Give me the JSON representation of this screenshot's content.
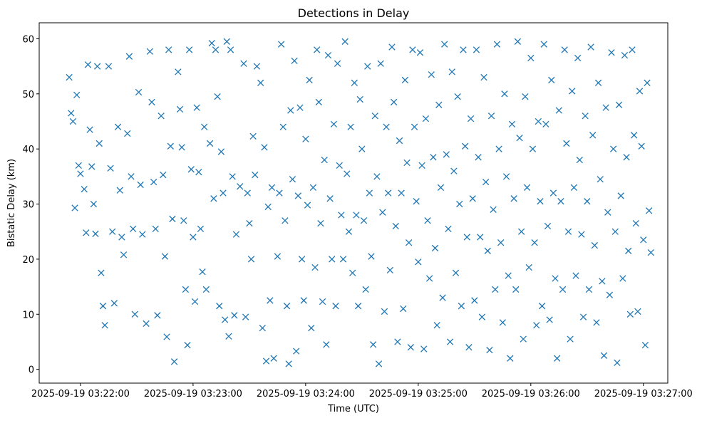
{
  "chart_data": {
    "type": "scatter",
    "title": "Detections in Delay",
    "xlabel": "Time (UTC)",
    "ylabel": "Bistatic Delay (km)",
    "marker": "x",
    "color": "#1f77b4",
    "grid": false,
    "xlim": [
      "2025-09-19 03:21:38",
      "2025-09-19 03:27:13"
    ],
    "ylim": [
      -2.5,
      62.9
    ],
    "x_ticks": [
      "2025-09-19 03:22:00",
      "2025-09-19 03:23:00",
      "2025-09-19 03:24:00",
      "2025-09-19 03:25:00",
      "2025-09-19 03:26:00",
      "2025-09-19 03:27:00"
    ],
    "y_ticks": [
      "0",
      "10",
      "20",
      "30",
      "40",
      "50",
      "60"
    ],
    "points": [
      [
        "2025-09-19 03:21:54",
        53.0
      ],
      [
        "2025-09-19 03:21:55",
        46.5
      ],
      [
        "2025-09-19 03:21:56",
        45.0
      ],
      [
        "2025-09-19 03:21:57",
        29.3
      ],
      [
        "2025-09-19 03:21:58",
        49.8
      ],
      [
        "2025-09-19 03:21:59",
        37.0
      ],
      [
        "2025-09-19 03:22:00",
        35.5
      ],
      [
        "2025-09-19 03:22:02",
        32.7
      ],
      [
        "2025-09-19 03:22:03",
        24.8
      ],
      [
        "2025-09-19 03:22:04",
        55.3
      ],
      [
        "2025-09-19 03:22:05",
        43.5
      ],
      [
        "2025-09-19 03:22:06",
        36.8
      ],
      [
        "2025-09-19 03:22:07",
        30.0
      ],
      [
        "2025-09-19 03:22:08",
        24.6
      ],
      [
        "2025-09-19 03:22:09",
        55.0
      ],
      [
        "2025-09-19 03:22:10",
        41.0
      ],
      [
        "2025-09-19 03:22:11",
        17.5
      ],
      [
        "2025-09-19 03:22:12",
        11.5
      ],
      [
        "2025-09-19 03:22:13",
        8.0
      ],
      [
        "2025-09-19 03:22:15",
        55.0
      ],
      [
        "2025-09-19 03:22:16",
        36.5
      ],
      [
        "2025-09-19 03:22:17",
        25.0
      ],
      [
        "2025-09-19 03:22:18",
        12.0
      ],
      [
        "2025-09-19 03:22:20",
        44.0
      ],
      [
        "2025-09-19 03:22:21",
        32.5
      ],
      [
        "2025-09-19 03:22:22",
        24.0
      ],
      [
        "2025-09-19 03:22:23",
        20.8
      ],
      [
        "2025-09-19 03:22:25",
        42.8
      ],
      [
        "2025-09-19 03:22:26",
        56.8
      ],
      [
        "2025-09-19 03:22:27",
        35.0
      ],
      [
        "2025-09-19 03:22:28",
        25.5
      ],
      [
        "2025-09-19 03:22:29",
        10.0
      ],
      [
        "2025-09-19 03:22:31",
        50.3
      ],
      [
        "2025-09-19 03:22:32",
        33.5
      ],
      [
        "2025-09-19 03:22:33",
        24.5
      ],
      [
        "2025-09-19 03:22:35",
        8.3
      ],
      [
        "2025-09-19 03:22:37",
        57.7
      ],
      [
        "2025-09-19 03:22:38",
        48.5
      ],
      [
        "2025-09-19 03:22:39",
        34.0
      ],
      [
        "2025-09-19 03:22:40",
        25.5
      ],
      [
        "2025-09-19 03:22:41",
        9.8
      ],
      [
        "2025-09-19 03:22:43",
        46.0
      ],
      [
        "2025-09-19 03:22:44",
        35.3
      ],
      [
        "2025-09-19 03:22:45",
        20.5
      ],
      [
        "2025-09-19 03:22:46",
        5.9
      ],
      [
        "2025-09-19 03:22:47",
        58.0
      ],
      [
        "2025-09-19 03:22:48",
        40.5
      ],
      [
        "2025-09-19 03:22:49",
        27.3
      ],
      [
        "2025-09-19 03:22:50",
        1.4
      ],
      [
        "2025-09-19 03:22:52",
        54.0
      ],
      [
        "2025-09-19 03:22:53",
        47.2
      ],
      [
        "2025-09-19 03:22:54",
        40.3
      ],
      [
        "2025-09-19 03:22:55",
        27.0
      ],
      [
        "2025-09-19 03:22:56",
        14.5
      ],
      [
        "2025-09-19 03:22:57",
        4.4
      ],
      [
        "2025-09-19 03:22:58",
        58.0
      ],
      [
        "2025-09-19 03:22:59",
        36.3
      ],
      [
        "2025-09-19 03:23:00",
        24.0
      ],
      [
        "2025-09-19 03:23:01",
        12.3
      ],
      [
        "2025-09-19 03:23:02",
        47.5
      ],
      [
        "2025-09-19 03:23:03",
        35.8
      ],
      [
        "2025-09-19 03:23:04",
        25.5
      ],
      [
        "2025-09-19 03:23:05",
        17.7
      ],
      [
        "2025-09-19 03:23:06",
        44.0
      ],
      [
        "2025-09-19 03:23:07",
        14.5
      ],
      [
        "2025-09-19 03:23:09",
        41.0
      ],
      [
        "2025-09-19 03:23:10",
        59.2
      ],
      [
        "2025-09-19 03:23:11",
        31.0
      ],
      [
        "2025-09-19 03:23:12",
        58.0
      ],
      [
        "2025-09-19 03:23:13",
        49.5
      ],
      [
        "2025-09-19 03:23:14",
        11.5
      ],
      [
        "2025-09-19 03:23:15",
        39.5
      ],
      [
        "2025-09-19 03:23:16",
        32.0
      ],
      [
        "2025-09-19 03:23:17",
        9.0
      ],
      [
        "2025-09-19 03:23:18",
        59.5
      ],
      [
        "2025-09-19 03:23:19",
        6.0
      ],
      [
        "2025-09-19 03:23:20",
        58.0
      ],
      [
        "2025-09-19 03:23:21",
        35.0
      ],
      [
        "2025-09-19 03:23:22",
        9.8
      ],
      [
        "2025-09-19 03:23:23",
        24.5
      ],
      [
        "2025-09-19 03:23:25",
        33.2
      ],
      [
        "2025-09-19 03:23:27",
        55.5
      ],
      [
        "2025-09-19 03:23:28",
        9.5
      ],
      [
        "2025-09-19 03:23:29",
        32.0
      ],
      [
        "2025-09-19 03:23:30",
        26.5
      ],
      [
        "2025-09-19 03:23:31",
        20.0
      ],
      [
        "2025-09-19 03:23:32",
        42.3
      ],
      [
        "2025-09-19 03:23:33",
        35.3
      ],
      [
        "2025-09-19 03:23:34",
        55.0
      ],
      [
        "2025-09-19 03:23:36",
        52.0
      ],
      [
        "2025-09-19 03:23:37",
        7.5
      ],
      [
        "2025-09-19 03:23:38",
        40.3
      ],
      [
        "2025-09-19 03:23:39",
        1.5
      ],
      [
        "2025-09-19 03:23:40",
        29.5
      ],
      [
        "2025-09-19 03:23:41",
        12.5
      ],
      [
        "2025-09-19 03:23:42",
        33.0
      ],
      [
        "2025-09-19 03:23:43",
        2.0
      ],
      [
        "2025-09-19 03:23:45",
        20.5
      ],
      [
        "2025-09-19 03:23:46",
        32.0
      ],
      [
        "2025-09-19 03:23:47",
        59.0
      ],
      [
        "2025-09-19 03:23:48",
        44.0
      ],
      [
        "2025-09-19 03:23:49",
        27.0
      ],
      [
        "2025-09-19 03:23:50",
        11.5
      ],
      [
        "2025-09-19 03:23:51",
        1.0
      ],
      [
        "2025-09-19 03:23:52",
        47.0
      ],
      [
        "2025-09-19 03:23:53",
        34.5
      ],
      [
        "2025-09-19 03:23:54",
        56.0
      ],
      [
        "2025-09-19 03:23:55",
        3.3
      ],
      [
        "2025-09-19 03:23:56",
        31.5
      ],
      [
        "2025-09-19 03:23:57",
        47.5
      ],
      [
        "2025-09-19 03:23:58",
        20.0
      ],
      [
        "2025-09-19 03:23:59",
        12.5
      ],
      [
        "2025-09-19 03:24:00",
        41.8
      ],
      [
        "2025-09-19 03:24:01",
        29.8
      ],
      [
        "2025-09-19 03:24:02",
        52.5
      ],
      [
        "2025-09-19 03:24:03",
        7.5
      ],
      [
        "2025-09-19 03:24:04",
        33.0
      ],
      [
        "2025-09-19 03:24:05",
        18.5
      ],
      [
        "2025-09-19 03:24:06",
        58.0
      ],
      [
        "2025-09-19 03:24:07",
        48.5
      ],
      [
        "2025-09-19 03:24:08",
        26.5
      ],
      [
        "2025-09-19 03:24:09",
        12.3
      ],
      [
        "2025-09-19 03:24:10",
        38.0
      ],
      [
        "2025-09-19 03:24:11",
        4.5
      ],
      [
        "2025-09-19 03:24:12",
        57.0
      ],
      [
        "2025-09-19 03:24:13",
        31.0
      ],
      [
        "2025-09-19 03:24:14",
        20.0
      ],
      [
        "2025-09-19 03:24:15",
        44.5
      ],
      [
        "2025-09-19 03:24:16",
        11.5
      ],
      [
        "2025-09-19 03:24:17",
        55.5
      ],
      [
        "2025-09-19 03:24:18",
        37.0
      ],
      [
        "2025-09-19 03:24:19",
        28.0
      ],
      [
        "2025-09-19 03:24:20",
        20.0
      ],
      [
        "2025-09-19 03:24:21",
        59.5
      ],
      [
        "2025-09-19 03:24:22",
        35.5
      ],
      [
        "2025-09-19 03:24:23",
        25.0
      ],
      [
        "2025-09-19 03:24:24",
        44.0
      ],
      [
        "2025-09-19 03:24:25",
        17.5
      ],
      [
        "2025-09-19 03:24:26",
        52.0
      ],
      [
        "2025-09-19 03:24:27",
        28.0
      ],
      [
        "2025-09-19 03:24:28",
        11.5
      ],
      [
        "2025-09-19 03:24:29",
        49.0
      ],
      [
        "2025-09-19 03:24:30",
        40.0
      ],
      [
        "2025-09-19 03:24:31",
        27.0
      ],
      [
        "2025-09-19 03:24:32",
        14.5
      ],
      [
        "2025-09-19 03:24:33",
        55.0
      ],
      [
        "2025-09-19 03:24:34",
        32.0
      ],
      [
        "2025-09-19 03:24:35",
        20.5
      ],
      [
        "2025-09-19 03:24:36",
        4.5
      ],
      [
        "2025-09-19 03:24:37",
        46.0
      ],
      [
        "2025-09-19 03:24:38",
        35.0
      ],
      [
        "2025-09-19 03:24:39",
        1.0
      ],
      [
        "2025-09-19 03:24:40",
        55.5
      ],
      [
        "2025-09-19 03:24:41",
        28.5
      ],
      [
        "2025-09-19 03:24:42",
        10.5
      ],
      [
        "2025-09-19 03:24:43",
        44.0
      ],
      [
        "2025-09-19 03:24:44",
        32.0
      ],
      [
        "2025-09-19 03:24:45",
        18.0
      ],
      [
        "2025-09-19 03:24:46",
        58.5
      ],
      [
        "2025-09-19 03:24:47",
        48.5
      ],
      [
        "2025-09-19 03:24:48",
        26.0
      ],
      [
        "2025-09-19 03:24:49",
        5.0
      ],
      [
        "2025-09-19 03:24:50",
        41.5
      ],
      [
        "2025-09-19 03:24:51",
        32.0
      ],
      [
        "2025-09-19 03:24:52",
        11.0
      ],
      [
        "2025-09-19 03:24:53",
        52.5
      ],
      [
        "2025-09-19 03:24:54",
        37.5
      ],
      [
        "2025-09-19 03:24:55",
        23.0
      ],
      [
        "2025-09-19 03:24:56",
        4.0
      ],
      [
        "2025-09-19 03:24:57",
        58.0
      ],
      [
        "2025-09-19 03:24:58",
        44.0
      ],
      [
        "2025-09-19 03:24:59",
        30.5
      ],
      [
        "2025-09-19 03:25:00",
        19.5
      ],
      [
        "2025-09-19 03:25:01",
        57.5
      ],
      [
        "2025-09-19 03:25:02",
        37.0
      ],
      [
        "2025-09-19 03:25:03",
        3.7
      ],
      [
        "2025-09-19 03:25:04",
        45.5
      ],
      [
        "2025-09-19 03:25:05",
        27.0
      ],
      [
        "2025-09-19 03:25:06",
        16.5
      ],
      [
        "2025-09-19 03:25:07",
        53.5
      ],
      [
        "2025-09-19 03:25:08",
        38.5
      ],
      [
        "2025-09-19 03:25:09",
        22.0
      ],
      [
        "2025-09-19 03:25:10",
        8.0
      ],
      [
        "2025-09-19 03:25:11",
        48.0
      ],
      [
        "2025-09-19 03:25:12",
        33.0
      ],
      [
        "2025-09-19 03:25:13",
        13.0
      ],
      [
        "2025-09-19 03:25:14",
        59.0
      ],
      [
        "2025-09-19 03:25:15",
        39.0
      ],
      [
        "2025-09-19 03:25:16",
        25.5
      ],
      [
        "2025-09-19 03:25:17",
        5.0
      ],
      [
        "2025-09-19 03:25:18",
        54.0
      ],
      [
        "2025-09-19 03:25:19",
        36.0
      ],
      [
        "2025-09-19 03:25:20",
        17.5
      ],
      [
        "2025-09-19 03:25:21",
        49.5
      ],
      [
        "2025-09-19 03:25:22",
        30.0
      ],
      [
        "2025-09-19 03:25:23",
        11.5
      ],
      [
        "2025-09-19 03:25:24",
        58.0
      ],
      [
        "2025-09-19 03:25:25",
        40.5
      ],
      [
        "2025-09-19 03:25:26",
        24.0
      ],
      [
        "2025-09-19 03:25:27",
        4.0
      ],
      [
        "2025-09-19 03:25:28",
        45.5
      ],
      [
        "2025-09-19 03:25:29",
        31.0
      ],
      [
        "2025-09-19 03:25:30",
        12.5
      ],
      [
        "2025-09-19 03:25:31",
        58.0
      ],
      [
        "2025-09-19 03:25:32",
        38.5
      ],
      [
        "2025-09-19 03:25:33",
        24.0
      ],
      [
        "2025-09-19 03:25:34",
        9.5
      ],
      [
        "2025-09-19 03:25:35",
        53.0
      ],
      [
        "2025-09-19 03:25:36",
        34.0
      ],
      [
        "2025-09-19 03:25:37",
        21.5
      ],
      [
        "2025-09-19 03:25:38",
        3.5
      ],
      [
        "2025-09-19 03:25:39",
        46.0
      ],
      [
        "2025-09-19 03:25:40",
        29.0
      ],
      [
        "2025-09-19 03:25:41",
        14.5
      ],
      [
        "2025-09-19 03:25:42",
        59.0
      ],
      [
        "2025-09-19 03:25:43",
        40.0
      ],
      [
        "2025-09-19 03:25:44",
        23.0
      ],
      [
        "2025-09-19 03:25:45",
        8.5
      ],
      [
        "2025-09-19 03:25:46",
        50.0
      ],
      [
        "2025-09-19 03:25:47",
        35.0
      ],
      [
        "2025-09-19 03:25:48",
        17.0
      ],
      [
        "2025-09-19 03:25:49",
        2.0
      ],
      [
        "2025-09-19 03:25:50",
        44.5
      ],
      [
        "2025-09-19 03:25:51",
        31.0
      ],
      [
        "2025-09-19 03:25:52",
        14.5
      ],
      [
        "2025-09-19 03:25:53",
        59.5
      ],
      [
        "2025-09-19 03:25:54",
        42.0
      ],
      [
        "2025-09-19 03:25:55",
        25.0
      ],
      [
        "2025-09-19 03:25:56",
        5.5
      ],
      [
        "2025-09-19 03:25:57",
        49.5
      ],
      [
        "2025-09-19 03:25:58",
        33.0
      ],
      [
        "2025-09-19 03:25:59",
        18.5
      ],
      [
        "2025-09-19 03:26:00",
        56.5
      ],
      [
        "2025-09-19 03:26:01",
        40.0
      ],
      [
        "2025-09-19 03:26:02",
        23.0
      ],
      [
        "2025-09-19 03:26:03",
        8.0
      ],
      [
        "2025-09-19 03:26:04",
        45.0
      ],
      [
        "2025-09-19 03:26:05",
        30.5
      ],
      [
        "2025-09-19 03:26:06",
        11.5
      ],
      [
        "2025-09-19 03:26:07",
        59.0
      ],
      [
        "2025-09-19 03:26:08",
        44.5
      ],
      [
        "2025-09-19 03:26:09",
        26.0
      ],
      [
        "2025-09-19 03:26:10",
        9.0
      ],
      [
        "2025-09-19 03:26:11",
        52.5
      ],
      [
        "2025-09-19 03:26:12",
        32.0
      ],
      [
        "2025-09-19 03:26:13",
        16.5
      ],
      [
        "2025-09-19 03:26:14",
        2.0
      ],
      [
        "2025-09-19 03:26:15",
        47.0
      ],
      [
        "2025-09-19 03:26:16",
        30.5
      ],
      [
        "2025-09-19 03:26:17",
        14.5
      ],
      [
        "2025-09-19 03:26:18",
        58.0
      ],
      [
        "2025-09-19 03:26:19",
        41.0
      ],
      [
        "2025-09-19 03:26:20",
        25.0
      ],
      [
        "2025-09-19 03:26:21",
        5.5
      ],
      [
        "2025-09-19 03:26:22",
        50.5
      ],
      [
        "2025-09-19 03:26:23",
        33.0
      ],
      [
        "2025-09-19 03:26:24",
        17.0
      ],
      [
        "2025-09-19 03:26:25",
        56.5
      ],
      [
        "2025-09-19 03:26:26",
        38.0
      ],
      [
        "2025-09-19 03:26:27",
        24.5
      ],
      [
        "2025-09-19 03:26:28",
        9.5
      ],
      [
        "2025-09-19 03:26:29",
        46.0
      ],
      [
        "2025-09-19 03:26:30",
        30.5
      ],
      [
        "2025-09-19 03:26:31",
        14.5
      ],
      [
        "2025-09-19 03:26:32",
        58.5
      ],
      [
        "2025-09-19 03:26:33",
        42.5
      ],
      [
        "2025-09-19 03:26:34",
        22.5
      ],
      [
        "2025-09-19 03:26:35",
        8.5
      ],
      [
        "2025-09-19 03:26:36",
        52.0
      ],
      [
        "2025-09-19 03:26:37",
        34.5
      ],
      [
        "2025-09-19 03:26:38",
        16.0
      ],
      [
        "2025-09-19 03:26:39",
        2.5
      ],
      [
        "2025-09-19 03:26:40",
        47.5
      ],
      [
        "2025-09-19 03:26:41",
        28.5
      ],
      [
        "2025-09-19 03:26:42",
        13.5
      ],
      [
        "2025-09-19 03:26:43",
        57.5
      ],
      [
        "2025-09-19 03:26:44",
        40.0
      ],
      [
        "2025-09-19 03:26:45",
        25.0
      ],
      [
        "2025-09-19 03:26:46",
        1.2
      ],
      [
        "2025-09-19 03:26:47",
        48.0
      ],
      [
        "2025-09-19 03:26:48",
        31.5
      ],
      [
        "2025-09-19 03:26:49",
        16.5
      ],
      [
        "2025-09-19 03:26:50",
        57.0
      ],
      [
        "2025-09-19 03:26:51",
        38.5
      ],
      [
        "2025-09-19 03:26:52",
        21.5
      ],
      [
        "2025-09-19 03:26:53",
        10.0
      ],
      [
        "2025-09-19 03:26:54",
        58.0
      ],
      [
        "2025-09-19 03:26:55",
        42.5
      ],
      [
        "2025-09-19 03:26:56",
        26.5
      ],
      [
        "2025-09-19 03:26:57",
        10.5
      ],
      [
        "2025-09-19 03:26:58",
        50.5
      ],
      [
        "2025-09-19 03:26:59",
        40.5
      ],
      [
        "2025-09-19 03:27:00",
        23.5
      ],
      [
        "2025-09-19 03:27:01",
        4.4
      ],
      [
        "2025-09-19 03:27:02",
        52.0
      ],
      [
        "2025-09-19 03:27:03",
        28.8
      ],
      [
        "2025-09-19 03:27:04",
        21.2
      ]
    ]
  }
}
